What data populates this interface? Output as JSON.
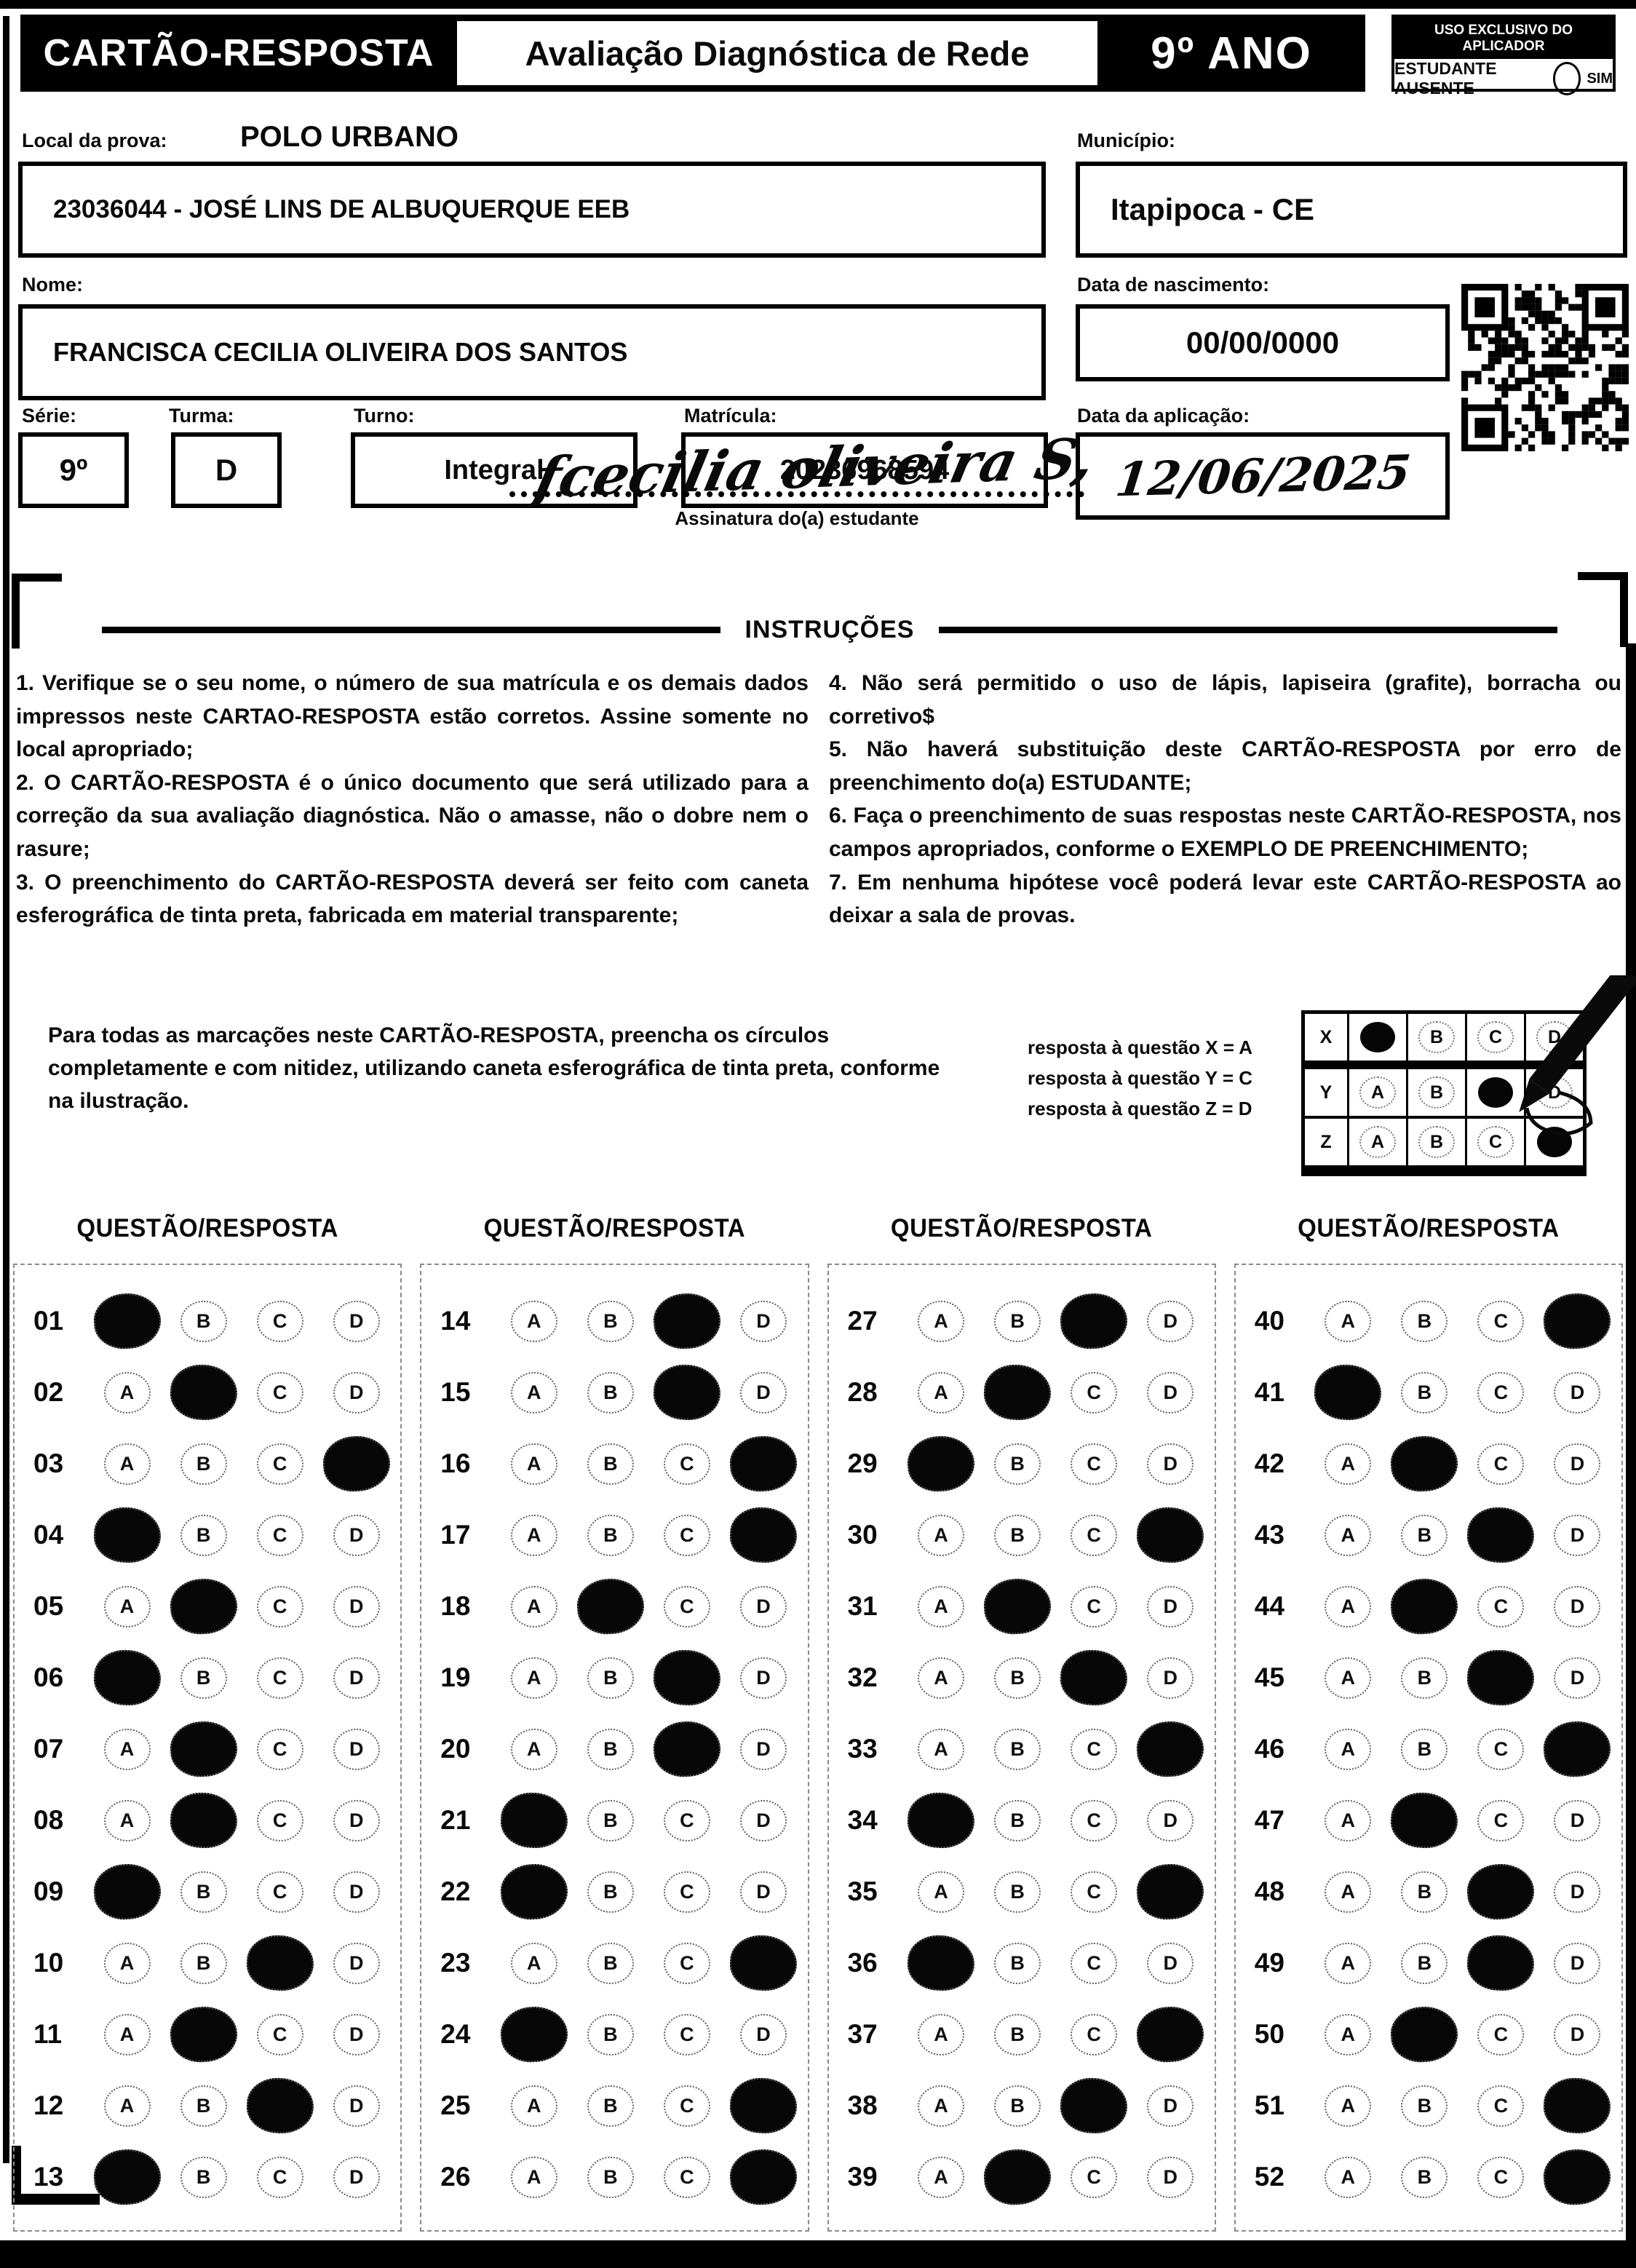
{
  "header": {
    "card_title": "CARTÃO-RESPOSTA",
    "exam_title": "Avaliação Diagnóstica de Rede",
    "grade": "9º ANO",
    "applicator_box": {
      "title": "USO EXCLUSIVO DO APLICADOR",
      "absent_label": "ESTUDANTE AUSENTE",
      "yes_label": "SIM"
    }
  },
  "form": {
    "local_label": "Local da prova:",
    "local_value": "POLO URBANO",
    "school_value": "23036044 - JOSÉ LINS DE ALBUQUERQUE EEB",
    "municipio_label": "Município:",
    "municipio_value": "Itapipoca - CE",
    "nome_label": "Nome:",
    "nome_value": "FRANCISCA CECILIA OLIVEIRA DOS SANTOS",
    "nascimento_label": "Data de nascimento:",
    "nascimento_value": "00/00/0000",
    "serie_label": "Série:",
    "serie_value": "9º",
    "turma_label": "Turma:",
    "turma_value": "D",
    "turno_label": "Turno:",
    "turno_value": "Integral",
    "matricula_label": "Matrícula:",
    "matricula_value": "20236968594",
    "aplicacao_label": "Data da aplicação:",
    "aplicacao_value": "12/06/2025",
    "assinatura_value": "fcecilia oliveira S,",
    "assinatura_label": "Assinatura do(a) estudante"
  },
  "instructions": {
    "title": "INSTRUÇÕES",
    "left": [
      "1. Verifique se o seu nome, o número de sua matrícula e os demais dados impressos neste CARTAO-RESPOSTA estão corretos. Assine somente no local apropriado;",
      "2. O CARTÃO-RESPOSTA é o único documento que será utilizado para a correção da sua avaliação diagnóstica. Não o amasse, não o dobre nem o rasure;",
      "3. O preenchimento do CARTÃO-RESPOSTA deverá ser feito com caneta esferográfica de tinta preta, fabricada em material transparente;"
    ],
    "right": [
      "4. Não será permitido o uso de lápis, lapiseira (grafite), borracha ou corretivo$",
      "5. Não haverá substituição deste CARTÃO-RESPOSTA por erro de preenchimento do(a) ESTUDANTE;",
      "6. Faça o preenchimento de suas respostas neste CARTÃO-RESPOSTA, nos campos apropriados, conforme o EXEMPLO DE PREENCHIMENTO;",
      "7. Em nenhuma hipótese você poderá levar este CARTÃO-RESPOSTA ao deixar a sala de provas."
    ]
  },
  "example": {
    "text": "Para todas as marcações neste CARTÃO-RESPOSTA, preencha os círculos completamente e com nitidez, utilizando caneta esferográfica de tinta preta, conforme na ilustração.",
    "legend": [
      "resposta à questão X = A",
      "resposta à questão Y = C",
      "resposta à questão Z = D"
    ],
    "grid": {
      "options": [
        "A",
        "B",
        "C",
        "D"
      ],
      "rows": [
        {
          "label": "X",
          "answer": "A"
        },
        {
          "label": "Y",
          "answer": "C"
        },
        {
          "label": "Z",
          "answer": "D"
        }
      ]
    }
  },
  "answers": {
    "column_header": "QUESTÃO/RESPOSTA",
    "options": [
      "A",
      "B",
      "C",
      "D"
    ],
    "columns": [
      [
        {
          "q": "01",
          "marked": "A"
        },
        {
          "q": "02",
          "marked": "B"
        },
        {
          "q": "03",
          "marked": "D"
        },
        {
          "q": "04",
          "marked": "A"
        },
        {
          "q": "05",
          "marked": "B"
        },
        {
          "q": "06",
          "marked": "A"
        },
        {
          "q": "07",
          "marked": "B"
        },
        {
          "q": "08",
          "marked": "B"
        },
        {
          "q": "09",
          "marked": "A"
        },
        {
          "q": "10",
          "marked": "C"
        },
        {
          "q": "11",
          "marked": "B"
        },
        {
          "q": "12",
          "marked": "C"
        },
        {
          "q": "13",
          "marked": "A"
        }
      ],
      [
        {
          "q": "14",
          "marked": "C"
        },
        {
          "q": "15",
          "marked": "C"
        },
        {
          "q": "16",
          "marked": "D"
        },
        {
          "q": "17",
          "marked": "D"
        },
        {
          "q": "18",
          "marked": "B"
        },
        {
          "q": "19",
          "marked": "C"
        },
        {
          "q": "20",
          "marked": "C"
        },
        {
          "q": "21",
          "marked": "A"
        },
        {
          "q": "22",
          "marked": "A"
        },
        {
          "q": "23",
          "marked": "D"
        },
        {
          "q": "24",
          "marked": "A"
        },
        {
          "q": "25",
          "marked": "D"
        },
        {
          "q": "26",
          "marked": "D"
        }
      ],
      [
        {
          "q": "27",
          "marked": "C"
        },
        {
          "q": "28",
          "marked": "B"
        },
        {
          "q": "29",
          "marked": "A"
        },
        {
          "q": "30",
          "marked": "D"
        },
        {
          "q": "31",
          "marked": "B"
        },
        {
          "q": "32",
          "marked": "C"
        },
        {
          "q": "33",
          "marked": "D"
        },
        {
          "q": "34",
          "marked": "A"
        },
        {
          "q": "35",
          "marked": "D"
        },
        {
          "q": "36",
          "marked": "A"
        },
        {
          "q": "37",
          "marked": "D"
        },
        {
          "q": "38",
          "marked": "C"
        },
        {
          "q": "39",
          "marked": "B"
        }
      ],
      [
        {
          "q": "40",
          "marked": "D"
        },
        {
          "q": "41",
          "marked": "A"
        },
        {
          "q": "42",
          "marked": "B"
        },
        {
          "q": "43",
          "marked": "C"
        },
        {
          "q": "44",
          "marked": "B"
        },
        {
          "q": "45",
          "marked": "C"
        },
        {
          "q": "46",
          "marked": "D"
        },
        {
          "q": "47",
          "marked": "B"
        },
        {
          "q": "48",
          "marked": "C"
        },
        {
          "q": "49",
          "marked": "C"
        },
        {
          "q": "50",
          "marked": "B"
        },
        {
          "q": "51",
          "marked": "D"
        },
        {
          "q": "52",
          "marked": "D"
        }
      ]
    ]
  }
}
